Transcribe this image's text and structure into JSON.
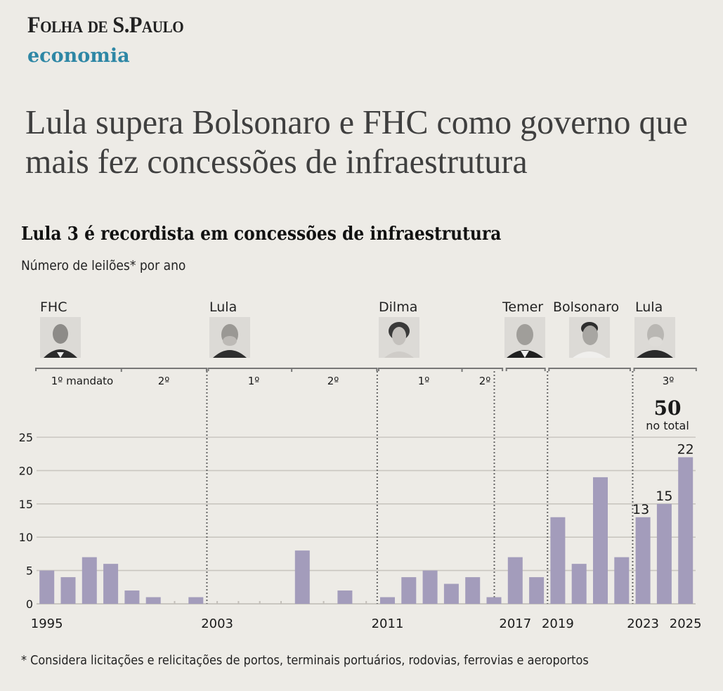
{
  "header": {
    "masthead": "Folha de S.Paulo",
    "section": "economia",
    "headline": "Lula supera Bolsonaro e FHC como governo que mais fez concessões de infraestrutura"
  },
  "presidents": [
    {
      "name": "FHC",
      "icon": "portrait-fhc-icon"
    },
    {
      "name": "Lula",
      "icon": "portrait-lula-icon"
    },
    {
      "name": "Dilma",
      "icon": "portrait-dilma-icon"
    },
    {
      "name": "Temer",
      "icon": "portrait-temer-icon"
    },
    {
      "name": "Bolsonaro",
      "icon": "portrait-bolsonaro-icon"
    },
    {
      "name": "Lula",
      "icon": "portrait-lula-3-icon"
    }
  ],
  "terms": [
    {
      "label": "1º mandato"
    },
    {
      "label": "2º"
    },
    {
      "label": "1º"
    },
    {
      "label": "2º"
    },
    {
      "label": "1º"
    },
    {
      "label": "2º"
    },
    {
      "label": "3º"
    }
  ],
  "total_annotation": {
    "value": "50",
    "label": "no total"
  },
  "footnote": "* Considera licitações e relicitações de portos, terminais portuários, rodovias, ferrovias e aeroportos",
  "colors": {
    "bar": "#a39cbb",
    "grid": "#c9c6c0",
    "section": "#2e87a5"
  },
  "chart_data": {
    "type": "bar",
    "title": "Lula 3 é recordista em concessões de infraestrutura",
    "subtitle": "Número de leilões* por ano",
    "xlabel": "",
    "ylabel": "",
    "ylim": [
      0,
      25
    ],
    "yticks": [
      0,
      5,
      10,
      15,
      20,
      25
    ],
    "grid": true,
    "categories": [
      1995,
      1996,
      1997,
      1998,
      1999,
      2000,
      2001,
      2002,
      2003,
      2004,
      2005,
      2006,
      2007,
      2008,
      2009,
      2010,
      2011,
      2012,
      2013,
      2014,
      2015,
      2016,
      2017,
      2018,
      2019,
      2020,
      2021,
      2022,
      2023,
      2024,
      2025
    ],
    "values": [
      5,
      4,
      7,
      6,
      2,
      1,
      0,
      1,
      0,
      0,
      0,
      0,
      8,
      0,
      2,
      0,
      1,
      4,
      5,
      3,
      4,
      1,
      7,
      4,
      13,
      6,
      19,
      7,
      13,
      15,
      22
    ],
    "xtick_labels": [
      "1995",
      "2003",
      "2011",
      "2017",
      "2019",
      "2023",
      "2025"
    ],
    "data_labels": [
      {
        "year": 2023,
        "text": "13"
      },
      {
        "year": 2024,
        "text": "15"
      },
      {
        "year": 2025,
        "text": "22"
      }
    ],
    "government_dividers": [
      2003,
      2011,
      2016.5,
      2019,
      2023
    ]
  }
}
